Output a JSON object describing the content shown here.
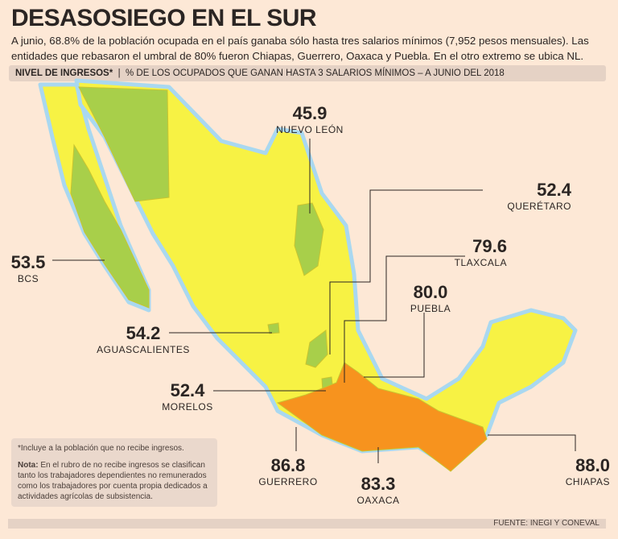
{
  "title": "DESASOSIEGO EN EL SUR",
  "lead": "A junio, 68.8% de la población ocupada en el país ganaba sólo hasta tres salarios mínimos (7,952 pesos mensuales). Las entidades que rebasaron el umbral de 80% fueron Chiapas, Guerrero, Oaxaca y Puebla. En el otro extremo se ubica NL.",
  "bar": {
    "label": "NIVEL DE INGRESOS*",
    "separator": "|",
    "subtitle": "% DE LOS OCUPADOS QUE GANAN HASTA 3 SALARIOS MÍNIMOS – A JUNIO DEL 2018"
  },
  "colors": {
    "background": "#fde8d6",
    "low": "#f7f244",
    "highlight_low": "#a8cf4a",
    "high": "#f7931e",
    "border": "#a9d8f0"
  },
  "states": [
    {
      "name": "NUEVO LEÓN",
      "value": "45.9"
    },
    {
      "name": "QUERÉTARO",
      "value": "52.4"
    },
    {
      "name": "TLAXCALA",
      "value": "79.6"
    },
    {
      "name": "PUEBLA",
      "value": "80.0"
    },
    {
      "name": "BCS",
      "value": "53.5"
    },
    {
      "name": "AGUASCALIENTES",
      "value": "54.2"
    },
    {
      "name": "MORELOS",
      "value": "52.4"
    },
    {
      "name": "GUERRERO",
      "value": "86.8"
    },
    {
      "name": "OAXACA",
      "value": "83.3"
    },
    {
      "name": "CHIAPAS",
      "value": "88.0"
    }
  ],
  "note": {
    "asterisk": "*Incluye a la población que no recibe ingresos.",
    "label": "Nota:",
    "text": " En el rubro de no recibe ingresos se clasifican tanto los trabajadores dependientes no remunerados como los trabajadores por cuenta propia dedicados a actividades agrícolas de subsistencia."
  },
  "source": "FUENTE: INEGI Y CONEVAL"
}
